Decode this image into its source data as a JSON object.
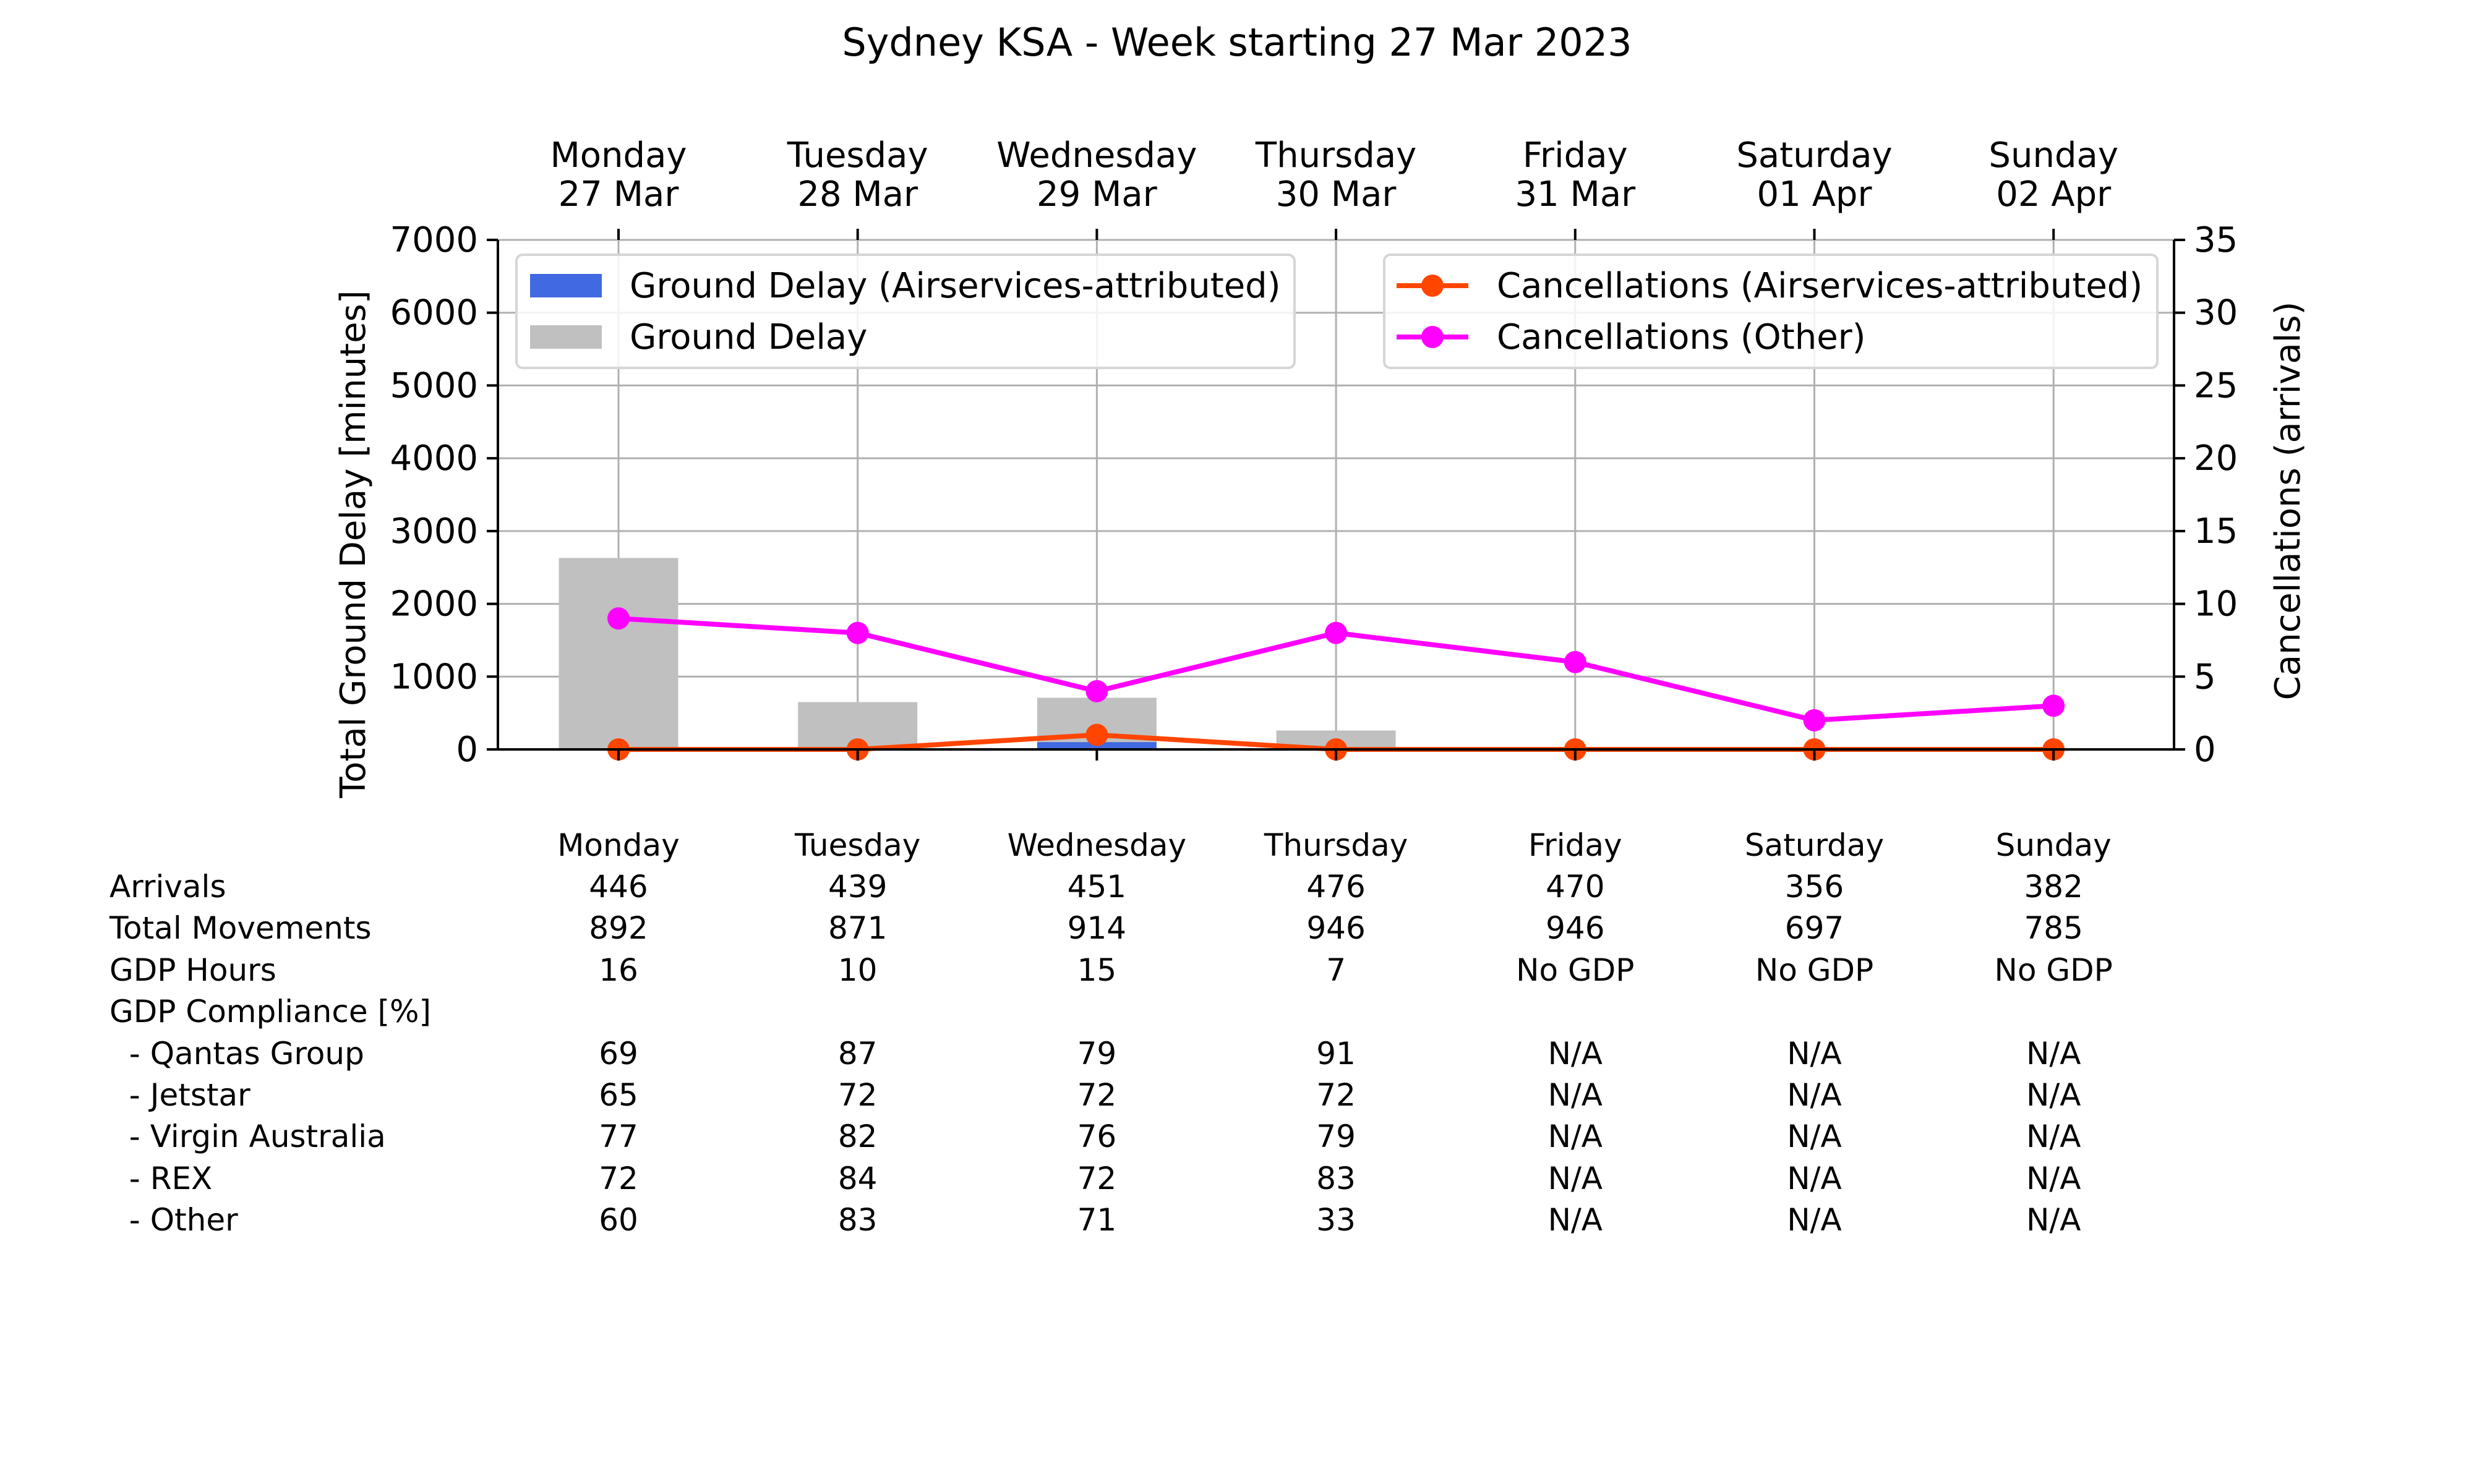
{
  "chart_data": {
    "type": "bar",
    "title": "Sydney KSA - Week starting 27 Mar 2023",
    "categories": [
      {
        "day": "Monday",
        "date": "27 Mar"
      },
      {
        "day": "Tuesday",
        "date": "28 Mar"
      },
      {
        "day": "Wednesday",
        "date": "29 Mar"
      },
      {
        "day": "Thursday",
        "date": "30 Mar"
      },
      {
        "day": "Friday",
        "date": "31 Mar"
      },
      {
        "day": "Saturday",
        "date": "01 Apr"
      },
      {
        "day": "Sunday",
        "date": "02 Apr"
      }
    ],
    "ylabel_left": "Total Ground Delay [minutes]",
    "ylabel_right": "Cancellations (arrivals)",
    "ylim_left": [
      0,
      7000
    ],
    "ylim_right": [
      0,
      35
    ],
    "yticks_left": [
      0,
      1000,
      2000,
      3000,
      4000,
      5000,
      6000,
      7000
    ],
    "yticks_right": [
      0,
      5,
      10,
      15,
      20,
      25,
      30,
      35
    ],
    "grid": true,
    "bar_series": [
      {
        "name": "Ground Delay (Airservices-attributed)",
        "color": "#4169e1",
        "values": [
          0,
          0,
          100,
          0,
          0,
          0,
          0
        ]
      },
      {
        "name": "Ground Delay",
        "color": "#c0c0c0",
        "values": [
          2630,
          650,
          710,
          260,
          0,
          0,
          0
        ]
      }
    ],
    "line_series": [
      {
        "name": "Cancellations (Airservices-attributed)",
        "color": "#ff4500",
        "values": [
          0,
          0,
          1,
          0,
          0,
          0,
          0
        ]
      },
      {
        "name": "Cancellations (Other)",
        "color": "#ff00ff",
        "values": [
          9,
          8,
          4,
          8,
          6,
          2,
          3
        ]
      }
    ],
    "legend_left_placement": "upper-left",
    "legend_right_placement": "upper-right"
  },
  "table": {
    "header": [
      "Monday",
      "Tuesday",
      "Wednesday",
      "Thursday",
      "Friday",
      "Saturday",
      "Sunday"
    ],
    "rows": [
      {
        "label": "Arrivals",
        "values": [
          "446",
          "439",
          "451",
          "476",
          "470",
          "356",
          "382"
        ]
      },
      {
        "label": "Total Movements",
        "values": [
          "892",
          "871",
          "914",
          "946",
          "946",
          "697",
          "785"
        ]
      },
      {
        "label": "GDP Hours",
        "values": [
          "16",
          "10",
          "15",
          "7",
          "No GDP",
          "No GDP",
          "No GDP"
        ]
      },
      {
        "label": "GDP Compliance [%]",
        "values": [
          "",
          "",
          "",
          "",
          "",
          "",
          ""
        ]
      },
      {
        "label": "  - Qantas Group",
        "values": [
          "69",
          "87",
          "79",
          "91",
          "N/A",
          "N/A",
          "N/A"
        ]
      },
      {
        "label": "  - Jetstar",
        "values": [
          "65",
          "72",
          "72",
          "72",
          "N/A",
          "N/A",
          "N/A"
        ]
      },
      {
        "label": "  - Virgin Australia",
        "values": [
          "77",
          "82",
          "76",
          "79",
          "N/A",
          "N/A",
          "N/A"
        ]
      },
      {
        "label": "  - REX",
        "values": [
          "72",
          "84",
          "72",
          "83",
          "N/A",
          "N/A",
          "N/A"
        ]
      },
      {
        "label": "  - Other",
        "values": [
          "60",
          "83",
          "71",
          "33",
          "N/A",
          "N/A",
          "N/A"
        ]
      }
    ]
  }
}
